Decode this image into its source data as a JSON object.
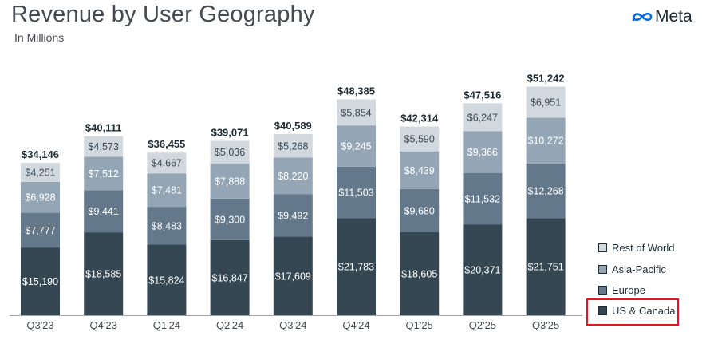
{
  "header": {
    "title": "Revenue by User Geography",
    "subtitle": "In Millions",
    "logo_text": "Meta",
    "logo_icon": "meta-infinity-icon"
  },
  "colors": {
    "us_canada": "#354753",
    "europe": "#63788a",
    "asia_pacific": "#94a6b5",
    "rest_of_world": "#d2d9de",
    "total_label": "#1c2b33",
    "highlight_box": "#e0191e",
    "logo_blue": "#0668e1"
  },
  "chart_data": {
    "type": "bar",
    "stacked": true,
    "title": "Revenue by User Geography",
    "subtitle": "In Millions",
    "categories": [
      "Q3'23",
      "Q4'23",
      "Q1'24",
      "Q2'24",
      "Q3'24",
      "Q4'24",
      "Q1'25",
      "Q2'25",
      "Q3'25"
    ],
    "series": [
      {
        "name": "US & Canada",
        "color": "#354753",
        "values": [
          15190,
          18585,
          15824,
          16847,
          17609,
          21783,
          18605,
          20371,
          21751
        ],
        "labels": [
          "$15,190",
          "$18,585",
          "$15,824",
          "$16,847",
          "$17,609",
          "$21,783",
          "$18,605",
          "$20,371",
          "$21,751"
        ]
      },
      {
        "name": "Europe",
        "color": "#63788a",
        "values": [
          7777,
          9441,
          8483,
          9300,
          9492,
          11503,
          9680,
          11532,
          12268
        ],
        "labels": [
          "$7,777",
          "$9,441",
          "$8,483",
          "$9,300",
          "$9,492",
          "$11,503",
          "$9,680",
          "$11,532",
          "$12,268"
        ]
      },
      {
        "name": "Asia-Pacific",
        "color": "#94a6b5",
        "values": [
          6928,
          7512,
          7481,
          7888,
          8220,
          9245,
          8439,
          9366,
          10272
        ],
        "labels": [
          "$6,928",
          "$7,512",
          "$7,481",
          "$7,888",
          "$8,220",
          "$9,245",
          "$8,439",
          "$9,366",
          "$10,272"
        ]
      },
      {
        "name": "Rest of World",
        "color": "#d2d9de",
        "values": [
          4251,
          4573,
          4667,
          5036,
          5268,
          5854,
          5590,
          6247,
          6951
        ],
        "labels": [
          "$4,251",
          "$4,573",
          "$4,667",
          "$5,036",
          "$5,268",
          "$5,854",
          "$5,590",
          "$6,247",
          "$6,951"
        ]
      }
    ],
    "totals": [
      34146,
      40111,
      36455,
      39071,
      40589,
      48385,
      42314,
      47516,
      51242
    ],
    "total_labels": [
      "$34,146",
      "$40,111",
      "$36,455",
      "$39,071",
      "$40,589",
      "$48,385",
      "$42,314",
      "$47,516",
      "$51,242"
    ],
    "ylim": [
      0,
      51242
    ],
    "grid": false,
    "legend_position": "bottom-right",
    "legend_order": [
      "Rest of World",
      "Asia-Pacific",
      "Europe",
      "US & Canada"
    ],
    "highlighted_legend_entry": "US & Canada"
  }
}
